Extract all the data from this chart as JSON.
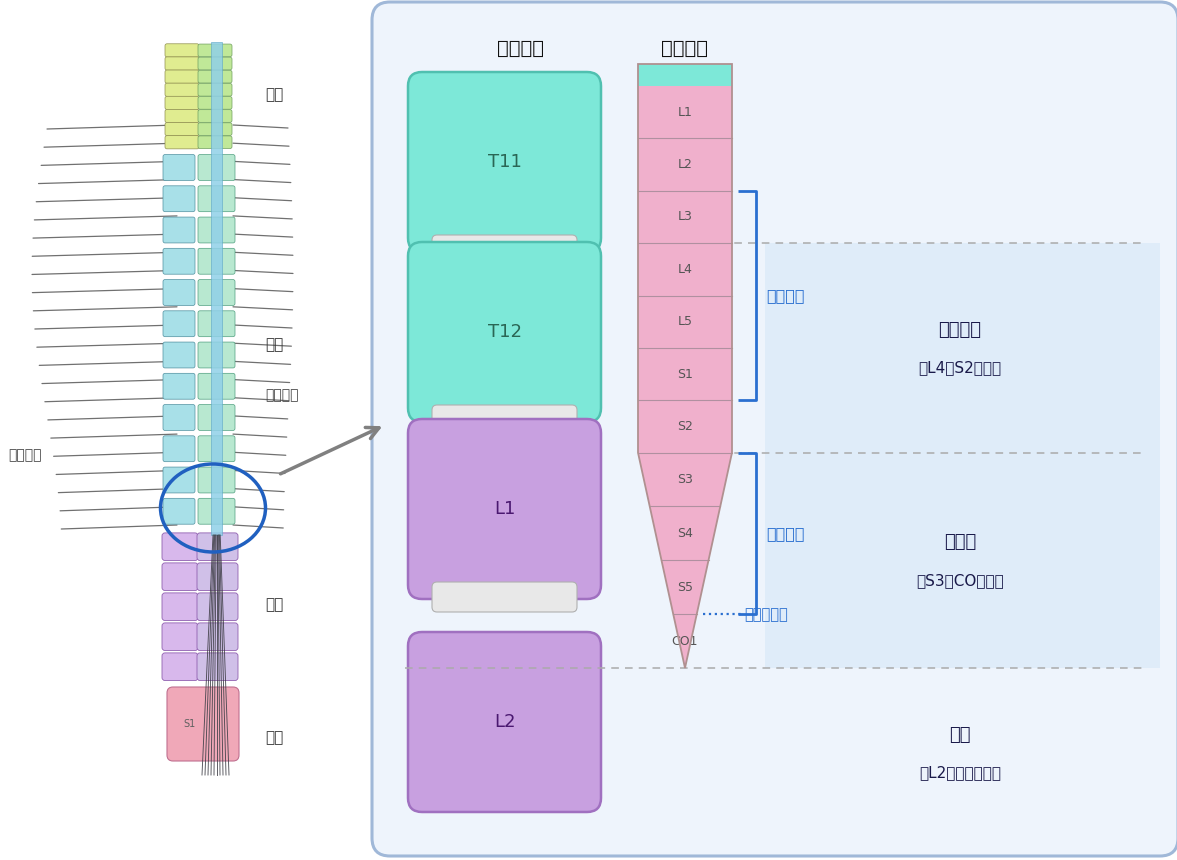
{
  "fig_width": 11.77,
  "fig_height": 8.6,
  "bg_color": "#ffffff",
  "panel_bg": "#eef3fb",
  "panel_border": "#a0b8d8",
  "cervical_label": "頸椎",
  "thoracic_label": "胸椎",
  "lumbar_label": "腰椎",
  "sacral_label": "仙骨",
  "anterior_label": "（前方）",
  "posterior_label": "（後方）",
  "left_col_title": "錐体高位",
  "right_col_title": "脊髄高位",
  "spinal_segments": [
    "L1",
    "L2",
    "L3",
    "L4",
    "L5",
    "S1",
    "S2",
    "S3",
    "S4",
    "S5",
    "CO1"
  ],
  "bracket1_label": "下肢運動",
  "bracket1_color": "#2a6fd0",
  "bracket2_label": "排尿中枢",
  "bracket2_color": "#2a6fd0",
  "bracket3_label": "会陰部感覚",
  "bracket3_color": "#2a6fd0",
  "region1_title": "円錐上部",
  "region1_subtitle": "（L4～S2髄節）",
  "region2_title": "円錐部",
  "region2_subtitle": "（S3～CO髄節）",
  "region3_title": "馬尾",
  "region3_subtitle": "（L2以下神経根）",
  "region_text_color": "#1a1a4a",
  "teal_color": "#7de8d8",
  "teal_border": "#50c0b0",
  "purple_color": "#c8a0e0",
  "purple_border": "#a070c0",
  "disc_color": "#e8e8e8",
  "disc_border": "#b0b0b0",
  "cone_pink": "#f0b0cc",
  "cone_light_pink": "#f8d0e0",
  "cone_outline": "#b09090"
}
